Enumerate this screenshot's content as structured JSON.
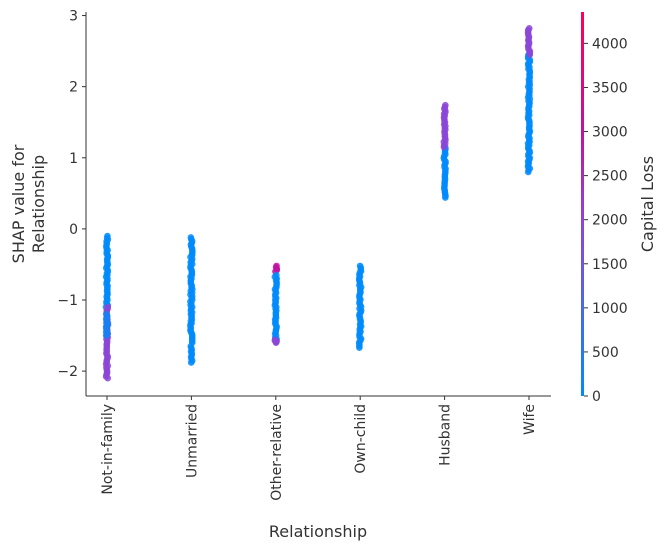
{
  "chart_data": {
    "type": "scatter",
    "title": "",
    "xlabel": "Relationship",
    "ylabel_lines": [
      "SHAP value for",
      "Relationship"
    ],
    "categories": [
      "Not-in-family",
      "Unmarried",
      "Other-relative",
      "Own-child",
      "Husband",
      "Wife"
    ],
    "yticks": [
      -2,
      -1,
      0,
      1,
      2,
      3
    ],
    "ylim": [
      -2.35,
      3.05
    ],
    "grid": false,
    "colorbar": {
      "label": "Capital Loss",
      "ticks": [
        0,
        500,
        1000,
        1500,
        2000,
        2500,
        3000,
        3500,
        4000
      ],
      "range": [
        0,
        4356
      ],
      "colors": [
        "#008bfb",
        "#8f45d6",
        "#c3109f",
        "#ff0052"
      ]
    },
    "point_groups": [
      {
        "category": "Not-in-family",
        "y_range": [
          -1.1,
          -0.1
        ],
        "capital_loss": 0
      },
      {
        "category": "Not-in-family",
        "y_range": [
          -2.1,
          -1.1
        ],
        "capital_loss": 1900
      },
      {
        "category": "Not-in-family",
        "y_range": [
          -1.5,
          -1.2
        ],
        "capital_loss": 300
      },
      {
        "category": "Unmarried",
        "y_range": [
          -1.6,
          -0.12
        ],
        "capital_loss": 0
      },
      {
        "category": "Unmarried",
        "y_range": [
          -1.88,
          -1.65
        ],
        "capital_loss": 0
      },
      {
        "category": "Other-relative",
        "y_range": [
          -0.6,
          -0.52
        ],
        "capital_loss": 3000
      },
      {
        "category": "Other-relative",
        "y_range": [
          -1.55,
          -0.65
        ],
        "capital_loss": 0
      },
      {
        "category": "Other-relative",
        "y_range": [
          -1.6,
          -1.56
        ],
        "capital_loss": 1900
      },
      {
        "category": "Own-child",
        "y_range": [
          -1.67,
          -0.52
        ],
        "capital_loss": 0
      },
      {
        "category": "Husband",
        "y_range": [
          0.44,
          1.15
        ],
        "capital_loss": 0
      },
      {
        "category": "Husband",
        "y_range": [
          1.15,
          1.74
        ],
        "capital_loss": 1900
      },
      {
        "category": "Wife",
        "y_range": [
          0.8,
          2.45
        ],
        "capital_loss": 0
      },
      {
        "category": "Wife",
        "y_range": [
          2.45,
          2.82
        ],
        "capital_loss": 1900
      }
    ]
  }
}
